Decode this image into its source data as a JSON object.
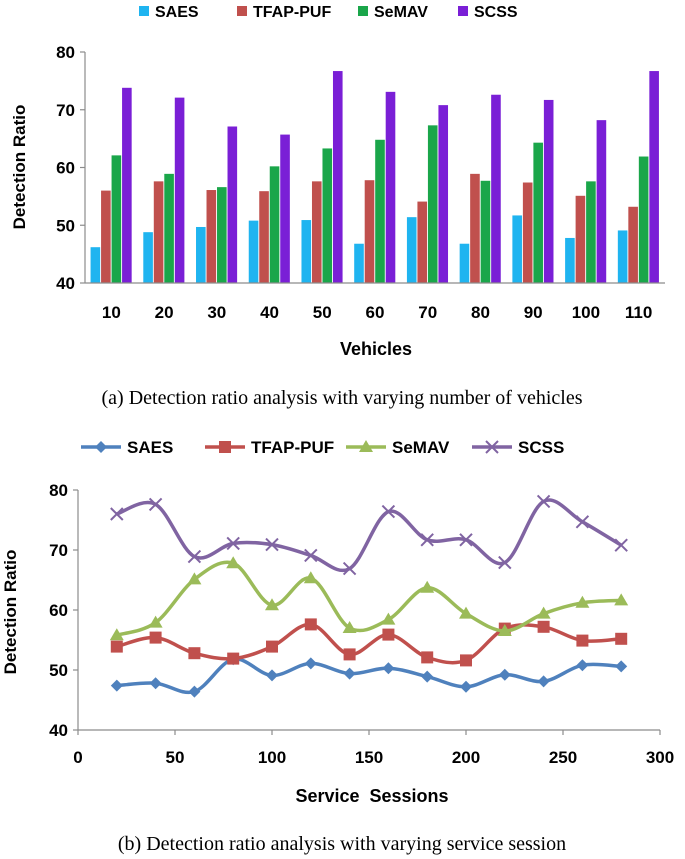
{
  "chart_data": [
    {
      "type": "bar",
      "title": "",
      "caption": "(a) Detection ratio analysis with varying number of vehicles",
      "xlabel": "Vehicles",
      "ylabel": "Detection Ratio",
      "ylim": [
        40,
        80
      ],
      "yticks": [
        "40",
        "50",
        "60",
        "70",
        "80"
      ],
      "categories": [
        "10",
        "20",
        "30",
        "40",
        "50",
        "60",
        "70",
        "80",
        "90",
        "100",
        "110"
      ],
      "grid": false,
      "legend_position": "top",
      "series": [
        {
          "name": "SAES",
          "color": "#1fb4f0",
          "values": [
            46.2,
            48.8,
            49.7,
            50.8,
            50.9,
            46.8,
            51.4,
            46.8,
            51.7,
            47.8,
            49.1
          ]
        },
        {
          "name": "TFAP-PUF",
          "color": "#c0504d",
          "values": [
            56.0,
            57.6,
            56.1,
            55.9,
            57.6,
            57.8,
            54.1,
            58.9,
            57.4,
            55.1,
            53.2
          ]
        },
        {
          "name": "SeMAV",
          "color": "#1aa64a",
          "values": [
            62.1,
            58.9,
            56.6,
            60.2,
            63.3,
            64.8,
            67.3,
            57.7,
            64.3,
            57.6,
            61.9
          ]
        },
        {
          "name": "SCSS",
          "color": "#7a1fd6",
          "values": [
            73.8,
            72.1,
            67.1,
            65.7,
            76.7,
            73.1,
            70.8,
            72.6,
            71.7,
            68.2,
            76.7
          ]
        }
      ]
    },
    {
      "type": "line",
      "title": "",
      "caption": "(b) Detection ratio analysis with varying service session",
      "xlabel": "Service  Sessions",
      "ylabel": "Detection Ratio",
      "xlim": [
        0,
        300
      ],
      "ylim": [
        40,
        80
      ],
      "xticks": [
        "0",
        "50",
        "100",
        "150",
        "200",
        "250",
        "300"
      ],
      "yticks": [
        "40",
        "50",
        "60",
        "70",
        "80"
      ],
      "x": [
        20,
        40,
        60,
        80,
        100,
        120,
        140,
        160,
        180,
        200,
        220,
        240,
        260,
        280
      ],
      "grid": false,
      "legend_position": "top",
      "series": [
        {
          "name": "SAES",
          "color": "#4f81bd",
          "marker": "diamond",
          "values": [
            47.4,
            47.8,
            46.4,
            51.8,
            49.1,
            51.1,
            49.4,
            50.3,
            48.9,
            47.2,
            49.2,
            48.1,
            50.8,
            50.6
          ]
        },
        {
          "name": "TFAP-PUF",
          "color": "#c0504d",
          "marker": "square",
          "values": [
            53.9,
            55.4,
            52.8,
            51.9,
            53.9,
            57.6,
            52.6,
            55.9,
            52.1,
            51.6,
            56.9,
            57.2,
            54.9,
            55.2
          ]
        },
        {
          "name": "SeMAV",
          "color": "#9bbb59",
          "marker": "triangle",
          "values": [
            55.8,
            57.9,
            65.1,
            67.8,
            60.8,
            65.3,
            57.0,
            58.4,
            63.7,
            59.4,
            56.5,
            59.4,
            61.2,
            61.6
          ]
        },
        {
          "name": "SCSS",
          "color": "#8064a2",
          "marker": "x",
          "values": [
            76.0,
            77.6,
            68.9,
            71.1,
            70.9,
            69.1,
            66.9,
            76.4,
            71.7,
            71.7,
            67.9,
            78.1,
            74.7,
            70.8
          ]
        }
      ]
    }
  ]
}
